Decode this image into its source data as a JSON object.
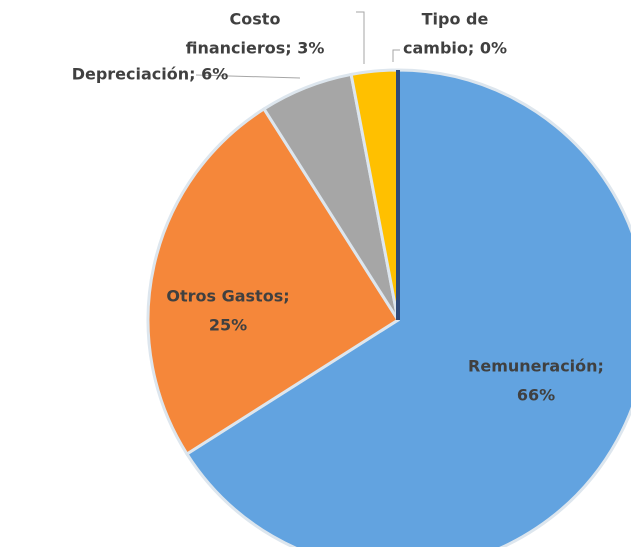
{
  "chart_data": {
    "type": "pie",
    "labels": [
      [
        "Remuneración;",
        "66%"
      ],
      [
        "Otros Gastos;",
        "25%"
      ],
      [
        "Depreciación; 6%"
      ],
      [
        "Costo",
        "financieros; 3%"
      ],
      [
        "Tipo de",
        "cambio; 0%"
      ]
    ],
    "values": [
      66,
      25,
      6,
      3,
      0
    ],
    "colors": [
      "#62a3e0",
      "#f5873a",
      "#a6a6a6",
      "#ffc000",
      "#2e4a7a"
    ]
  }
}
